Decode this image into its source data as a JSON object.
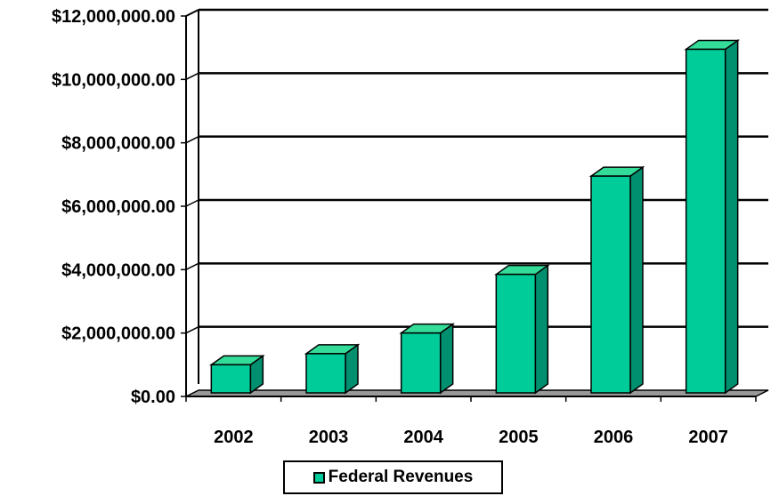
{
  "chart_data": {
    "type": "bar",
    "categories": [
      "2002",
      "2003",
      "2004",
      "2005",
      "2006",
      "2007"
    ],
    "series": [
      {
        "name": "Federal Revenues",
        "values": [
          1000000,
          1350000,
          2000000,
          3850000,
          6950000,
          10950000
        ]
      }
    ],
    "y_tick_labels": [
      "$0.00",
      "$2,000,000.00",
      "$4,000,000.00",
      "$6,000,000.00",
      "$8,000,000.00",
      "$10,000,000.00",
      "$12,000,000.00"
    ],
    "ylim": [
      0,
      12000000
    ],
    "grid": true,
    "legend": "bottom",
    "three_d": true,
    "colors": {
      "bar_front": "#00cc99",
      "bar_side": "#009070",
      "bar_top": "#33dd99",
      "floor": "#999999"
    }
  }
}
